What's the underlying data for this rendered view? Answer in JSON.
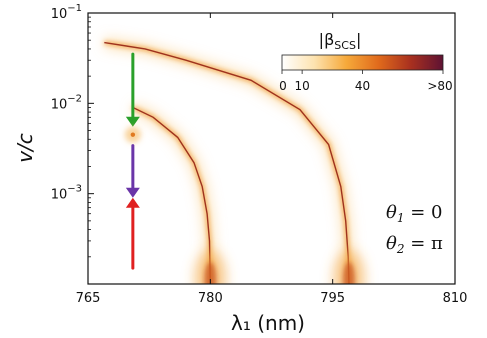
{
  "chart_data": {
    "type": "heatmap",
    "xlabel": "λ₁ (nm)",
    "ylabel": "v/c",
    "xlim": [
      765,
      810
    ],
    "ylim": [
      0.0001,
      0.1
    ],
    "yscale": "log",
    "xticks": [
      "765",
      "780",
      "795",
      "810"
    ],
    "yticks": [
      {
        "base": "10",
        "exp": "−1",
        "value": 0.1
      },
      {
        "base": "10",
        "exp": "−2",
        "value": 0.01
      },
      {
        "base": "10",
        "exp": "−3",
        "value": 0.001
      }
    ],
    "colorbar": {
      "title": "|β",
      "title_sub": "SCS",
      "title_end": "|",
      "ticks": [
        "0",
        "10",
        "40",
        ">80"
      ],
      "tick_values": [
        0,
        10,
        40,
        80
      ],
      "colors": [
        "#ffffff",
        "#fde3b0",
        "#f6a93a",
        "#e06a1c",
        "#a8301f",
        "#5e1233"
      ]
    },
    "annotations": [
      {
        "lhs": "θ",
        "sub": "1",
        "rhs": " = 0"
      },
      {
        "lhs": "θ",
        "sub": "2",
        "rhs": " = π"
      }
    ],
    "resonance_curves": [
      {
        "name": "branch-1",
        "points": [
          [
            767.0,
            0.047
          ],
          [
            772.0,
            0.04
          ],
          [
            777.0,
            0.03
          ],
          [
            785.0,
            0.018
          ],
          [
            791.0,
            0.0085
          ],
          [
            794.5,
            0.0035
          ],
          [
            796.0,
            0.0012
          ],
          [
            796.6,
            0.0005
          ],
          [
            796.9,
            0.0002
          ],
          [
            797.0,
            0.0001
          ]
        ]
      },
      {
        "name": "branch-2",
        "points": [
          [
            770.5,
            0.009
          ],
          [
            773.0,
            0.007
          ],
          [
            776.0,
            0.0042
          ],
          [
            778.0,
            0.0022
          ],
          [
            779.0,
            0.0012
          ],
          [
            779.6,
            0.0006
          ],
          [
            779.9,
            0.0003
          ],
          [
            780.0,
            0.0001
          ]
        ]
      }
    ],
    "markers": [
      {
        "name": "green-arrow",
        "color": "#2aa02a",
        "x": 770.5,
        "y_from": 0.035,
        "y_to": 0.0055,
        "direction": "down"
      },
      {
        "name": "glow-point",
        "color": "#f4b04a",
        "x": 770.5,
        "y": 0.0045
      },
      {
        "name": "purple-arrow",
        "color": "#6a35a8",
        "x": 770.5,
        "y_from": 0.0034,
        "y_to": 0.0009,
        "direction": "down"
      },
      {
        "name": "red-arrow",
        "color": "#e02020",
        "x": 770.5,
        "y_from": 0.00015,
        "y_to": 0.0009,
        "direction": "up"
      }
    ]
  }
}
